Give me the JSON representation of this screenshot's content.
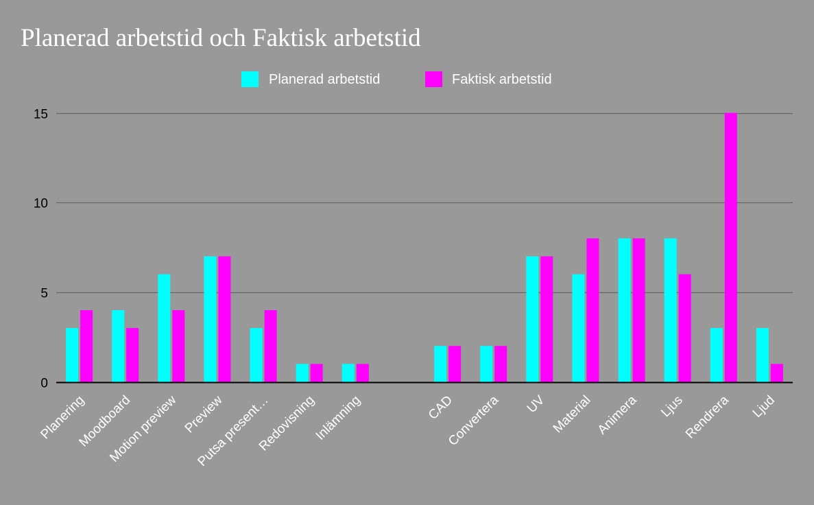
{
  "chart_data": {
    "type": "bar",
    "title": "Planerad arbetstid och Faktisk arbetstid",
    "xlabel": "",
    "ylabel": "",
    "ylim": [
      0,
      15
    ],
    "yticks": [
      0,
      5,
      10,
      15
    ],
    "grid": true,
    "legend_position": "top",
    "categories": [
      "Planering",
      "Moodboard",
      "Motion preview",
      "Preview",
      "Putsa present…",
      "Redovisning",
      "Inlämning",
      "",
      "CAD",
      "Convertera",
      "UV",
      "Material",
      "Animera",
      "Ljus",
      "Rendrera",
      "Ljud"
    ],
    "series": [
      {
        "name": "Planerad arbetstid",
        "color": "#00ffff",
        "values": [
          3,
          4,
          6,
          7,
          3,
          1,
          1,
          null,
          2,
          2,
          7,
          6,
          8,
          8,
          3,
          3
        ]
      },
      {
        "name": "Faktisk arbetstid",
        "color": "#ff00ff",
        "values": [
          4,
          3,
          4,
          7,
          4,
          1,
          1,
          null,
          2,
          2,
          7,
          8,
          8,
          6,
          15,
          1
        ]
      }
    ]
  },
  "colors": {
    "background": "#999999",
    "gridline": "#666666",
    "baseline": "#000000",
    "title_text": "#ffffff",
    "category_text": "#ffffff",
    "tick_text": "#000000"
  }
}
